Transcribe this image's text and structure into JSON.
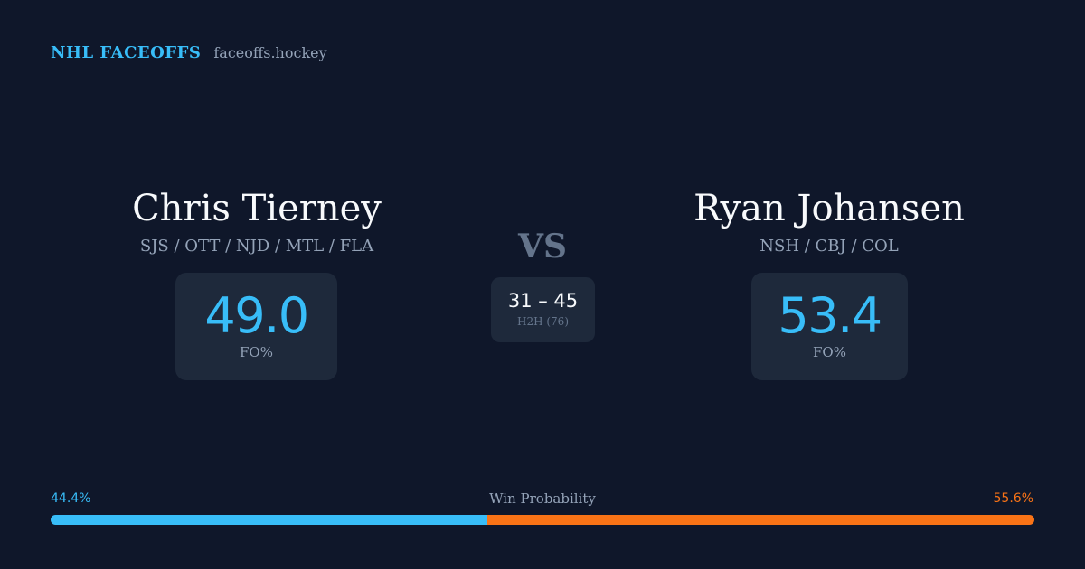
{
  "brand": {
    "name": "NHL FACEOFFS",
    "site": "faceoffs.hockey"
  },
  "players": {
    "left": {
      "name": "Chris Tierney",
      "teams": "SJS / OTT / NJD / MTL / FLA",
      "fo_pct": "49.0",
      "fo_label": "FO%"
    },
    "right": {
      "name": "Ryan Johansen",
      "teams": "NSH / CBJ / COL",
      "fo_pct": "53.4",
      "fo_label": "FO%"
    }
  },
  "matchup": {
    "vs_label": "VS",
    "h2h_record": "31 – 45",
    "h2h_label": "H2H (76)"
  },
  "win_probability": {
    "title": "Win Probability",
    "left_pct_label": "44.4%",
    "right_pct_label": "55.6%",
    "left_fraction": 0.444,
    "right_fraction": 0.556,
    "left_color": "#38bdf8",
    "right_color": "#f97316"
  },
  "colors": {
    "background": "#0f172a",
    "card": "#1e293b",
    "accent": "#38bdf8",
    "opponent_accent": "#f97316",
    "muted_text": "#94a3b8"
  }
}
